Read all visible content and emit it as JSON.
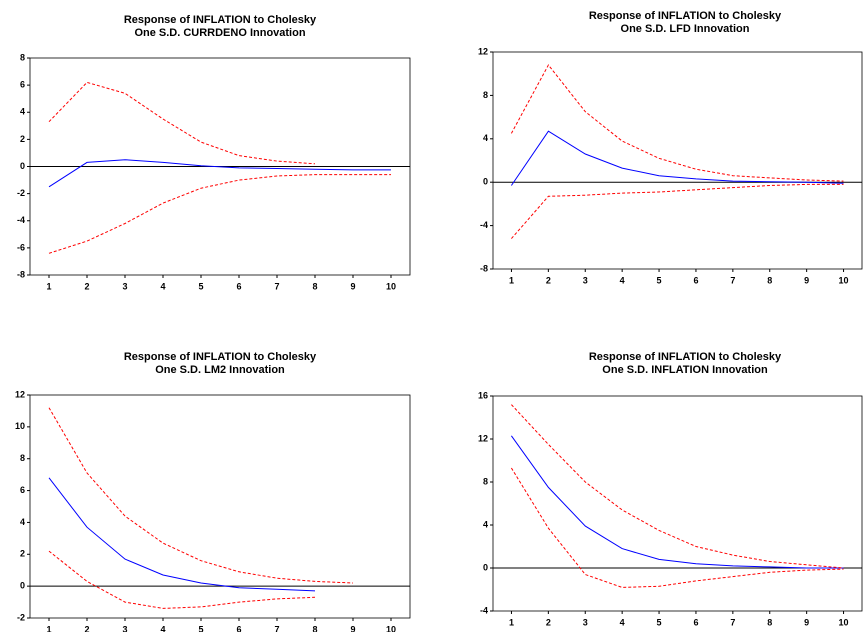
{
  "chart_data": [
    {
      "type": "line",
      "title": [
        "Response of INFLATION to Cholesky",
        "One S.D. CURRDENO Innovation"
      ],
      "x": [
        1,
        2,
        3,
        4,
        5,
        6,
        7,
        8,
        9,
        10
      ],
      "xlim": [
        0.5,
        10.5
      ],
      "xticks": [
        1,
        2,
        3,
        4,
        5,
        6,
        7,
        8,
        9,
        10
      ],
      "ylim": [
        -8,
        8
      ],
      "yticks": [
        -8,
        -6,
        -4,
        -2,
        0,
        2,
        4,
        6,
        8
      ],
      "series": [
        {
          "color": "#0000ff",
          "dashed": false,
          "values": [
            -1.5,
            0.3,
            0.5,
            0.3,
            0.05,
            -0.1,
            -0.15,
            -0.2,
            -0.25,
            -0.25
          ]
        },
        {
          "color": "#ff0000",
          "dashed": true,
          "values": [
            3.3,
            6.2,
            5.4,
            3.5,
            1.8,
            0.8,
            0.4,
            0.2,
            null,
            null
          ]
        },
        {
          "color": "#ff0000",
          "dashed": true,
          "values": [
            -6.4,
            -5.5,
            -4.2,
            -2.7,
            -1.6,
            -1.0,
            -0.7,
            -0.6,
            -0.6,
            -0.6
          ]
        }
      ]
    },
    {
      "type": "line",
      "title": [
        "Response of INFLATION to Cholesky",
        "One S.D. LFD Innovation"
      ],
      "x": [
        1,
        2,
        3,
        4,
        5,
        6,
        7,
        8,
        9,
        10
      ],
      "xlim": [
        0.5,
        10.5
      ],
      "xticks": [
        1,
        2,
        3,
        4,
        5,
        6,
        7,
        8,
        9,
        10
      ],
      "ylim": [
        -8,
        12
      ],
      "yticks": [
        -8,
        -4,
        0,
        4,
        8,
        12
      ],
      "series": [
        {
          "color": "#0000ff",
          "dashed": false,
          "values": [
            -0.3,
            4.7,
            2.6,
            1.3,
            0.6,
            0.3,
            0.1,
            0.05,
            0.0,
            -0.1
          ]
        },
        {
          "color": "#ff0000",
          "dashed": true,
          "values": [
            4.5,
            10.8,
            6.5,
            3.8,
            2.2,
            1.2,
            0.6,
            0.4,
            0.2,
            0.1
          ]
        },
        {
          "color": "#ff0000",
          "dashed": true,
          "values": [
            -5.2,
            -1.3,
            -1.2,
            -1.0,
            -0.9,
            -0.7,
            -0.5,
            -0.3,
            -0.2,
            -0.2
          ]
        }
      ]
    },
    {
      "type": "line",
      "title": [
        "Response of INFLATION to Cholesky",
        "One S.D. LM2 Innovation"
      ],
      "x": [
        1,
        2,
        3,
        4,
        5,
        6,
        7,
        8,
        9,
        10
      ],
      "xlim": [
        0.5,
        10.5
      ],
      "xticks": [
        1,
        2,
        3,
        4,
        5,
        6,
        7,
        8,
        9,
        10
      ],
      "ylim": [
        -2,
        12
      ],
      "yticks": [
        -2,
        0,
        2,
        4,
        6,
        8,
        10,
        12
      ],
      "series": [
        {
          "color": "#0000ff",
          "dashed": false,
          "values": [
            6.8,
            3.7,
            1.7,
            0.7,
            0.2,
            -0.1,
            -0.2,
            -0.3,
            null,
            null
          ]
        },
        {
          "color": "#ff0000",
          "dashed": true,
          "values": [
            11.2,
            7.1,
            4.4,
            2.7,
            1.6,
            0.9,
            0.5,
            0.3,
            0.2,
            null
          ]
        },
        {
          "color": "#ff0000",
          "dashed": true,
          "values": [
            2.2,
            0.3,
            -1.0,
            -1.4,
            -1.3,
            -1.0,
            -0.8,
            -0.7,
            null,
            null
          ]
        }
      ]
    },
    {
      "type": "line",
      "title": [
        "Response of INFLATION to Cholesky",
        "One S.D. INFLATION Innovation"
      ],
      "x": [
        1,
        2,
        3,
        4,
        5,
        6,
        7,
        8,
        9,
        10
      ],
      "xlim": [
        0.5,
        10.5
      ],
      "xticks": [
        1,
        2,
        3,
        4,
        5,
        6,
        7,
        8,
        9,
        10
      ],
      "ylim": [
        -4,
        16
      ],
      "yticks": [
        -4,
        0,
        4,
        8,
        12,
        16
      ],
      "series": [
        {
          "color": "#0000ff",
          "dashed": false,
          "values": [
            12.3,
            7.5,
            3.9,
            1.8,
            0.8,
            0.4,
            0.2,
            0.1,
            0.0,
            0.0
          ]
        },
        {
          "color": "#ff0000",
          "dashed": true,
          "values": [
            15.2,
            11.5,
            8.0,
            5.4,
            3.5,
            2.0,
            1.2,
            0.6,
            0.3,
            0.0
          ]
        },
        {
          "color": "#ff0000",
          "dashed": true,
          "values": [
            9.3,
            3.7,
            -0.6,
            -1.8,
            -1.7,
            -1.2,
            -0.8,
            -0.4,
            -0.2,
            -0.1
          ]
        }
      ]
    }
  ]
}
